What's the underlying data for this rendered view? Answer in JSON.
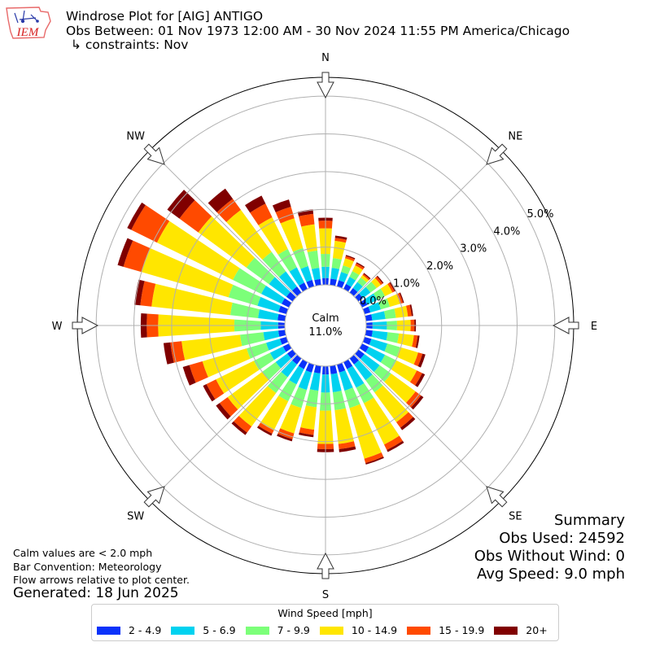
{
  "logo": {
    "text": "IEM"
  },
  "header": {
    "title": "Windrose Plot for [AIG] ANTIGO",
    "subtitle": "Obs Between: 01 Nov 1973 12:00 AM - 30 Nov 2024 11:55 PM America/Chicago",
    "constraints": "↳ constraints: Nov"
  },
  "notes": {
    "calm_note": "Calm values are < 2.0 mph",
    "bar_convention": "Bar Convention: Meteorology",
    "flow_note": "Flow arrows relative to plot center.",
    "generated": "Generated: 18 Jun 2025"
  },
  "summary": {
    "title": "Summary",
    "obs_used": "Obs Used: 24592",
    "obs_without_wind": "Obs Without Wind: 0",
    "avg_speed": "Avg Speed: 9.0 mph"
  },
  "calm": {
    "label": "Calm",
    "value": "11.0%"
  },
  "legend": {
    "title": "Wind Speed [mph]"
  },
  "chart_data": {
    "type": "windrose",
    "bar_convention": "meteorology",
    "calm_percent": 11.0,
    "radial_ticks": [
      "0.0%",
      "1.0%",
      "2.0%",
      "3.0%",
      "4.0%",
      "5.0%"
    ],
    "radial_tick_values": [
      0,
      1,
      2,
      3,
      4,
      5
    ],
    "radial_max": 5.5,
    "directions": [
      "N",
      "NE",
      "E",
      "SE",
      "S",
      "SW",
      "W",
      "NW"
    ],
    "bins": [
      {
        "label": "2 - 4.9",
        "color": "#0a32fa"
      },
      {
        "label": "5 - 6.9",
        "color": "#00d2f0"
      },
      {
        "label": "7 - 9.9",
        "color": "#7cff79"
      },
      {
        "label": "10 - 14.9",
        "color": "#ffe600"
      },
      {
        "label": "15 - 19.9",
        "color": "#ff4a00"
      },
      {
        "label": "20+",
        "color": "#800000"
      }
    ],
    "sector_count": 36,
    "sector_bearings": [
      0,
      10,
      20,
      30,
      40,
      50,
      60,
      70,
      80,
      90,
      100,
      110,
      120,
      130,
      140,
      150,
      160,
      170,
      180,
      190,
      200,
      210,
      220,
      230,
      240,
      250,
      260,
      270,
      280,
      290,
      300,
      310,
      320,
      330,
      340,
      350
    ],
    "sector_cumulative_percent": [
      [
        0.18,
        0.48,
        0.82,
        1.5,
        1.7,
        1.78
      ],
      [
        0.17,
        0.46,
        0.72,
        1.18,
        1.26,
        1.32
      ],
      [
        0.17,
        0.4,
        0.58,
        0.78,
        0.84,
        0.87
      ],
      [
        0.15,
        0.36,
        0.53,
        0.7,
        0.76,
        0.79
      ],
      [
        0.15,
        0.35,
        0.5,
        0.58,
        0.62,
        0.65
      ],
      [
        0.15,
        0.4,
        0.6,
        0.74,
        0.8,
        0.83
      ],
      [
        0.16,
        0.45,
        0.68,
        0.9,
        0.96,
        0.99
      ],
      [
        0.16,
        0.45,
        0.7,
        0.98,
        1.06,
        1.09
      ],
      [
        0.17,
        0.52,
        0.8,
        1.12,
        1.22,
        1.26
      ],
      [
        0.17,
        0.55,
        0.82,
        1.18,
        1.28,
        1.32
      ],
      [
        0.18,
        0.58,
        0.88,
        1.28,
        1.38,
        1.43
      ],
      [
        0.19,
        0.63,
        0.98,
        1.48,
        1.6,
        1.68
      ],
      [
        0.2,
        0.68,
        1.02,
        1.62,
        1.78,
        1.86
      ],
      [
        0.2,
        0.7,
        1.08,
        1.88,
        2.06,
        2.14
      ],
      [
        0.2,
        0.72,
        1.12,
        2.1,
        2.28,
        2.36
      ],
      [
        0.21,
        0.76,
        1.22,
        2.44,
        2.6,
        2.66
      ],
      [
        0.22,
        0.72,
        1.2,
        2.6,
        2.72,
        2.76
      ],
      [
        0.22,
        0.7,
        1.18,
        2.08,
        2.22,
        2.3
      ],
      [
        0.22,
        0.7,
        1.18,
        2.06,
        2.2,
        2.28
      ],
      [
        0.2,
        0.66,
        1.1,
        1.7,
        1.84,
        1.9
      ],
      [
        0.22,
        0.7,
        1.2,
        1.9,
        2.06,
        2.12
      ],
      [
        0.21,
        0.66,
        1.16,
        2.02,
        2.12,
        2.18
      ],
      [
        0.2,
        0.62,
        1.14,
        2.24,
        2.44,
        2.52
      ],
      [
        0.18,
        0.56,
        1.0,
        2.14,
        2.4,
        2.52
      ],
      [
        0.18,
        0.56,
        1.04,
        2.16,
        2.44,
        2.54
      ],
      [
        0.18,
        0.56,
        1.1,
        2.32,
        2.68,
        2.86
      ],
      [
        0.18,
        0.58,
        1.2,
        2.76,
        3.06,
        3.24
      ],
      [
        0.18,
        0.64,
        1.34,
        3.36,
        3.66,
        3.82
      ],
      [
        0.2,
        0.72,
        1.46,
        3.56,
        3.86,
        4.02
      ],
      [
        0.22,
        0.8,
        1.6,
        4.0,
        4.5,
        4.66
      ],
      [
        0.22,
        0.82,
        1.66,
        3.9,
        4.66,
        4.78
      ],
      [
        0.21,
        0.78,
        1.52,
        3.1,
        3.72,
        4.12
      ],
      [
        0.2,
        0.7,
        1.34,
        2.72,
        3.08,
        3.42
      ],
      [
        0.19,
        0.64,
        1.18,
        2.12,
        2.52,
        2.76
      ],
      [
        0.18,
        0.56,
        1.06,
        1.88,
        2.2,
        2.4
      ],
      [
        0.16,
        0.46,
        0.92,
        1.62,
        1.9,
        2.02
      ]
    ]
  }
}
